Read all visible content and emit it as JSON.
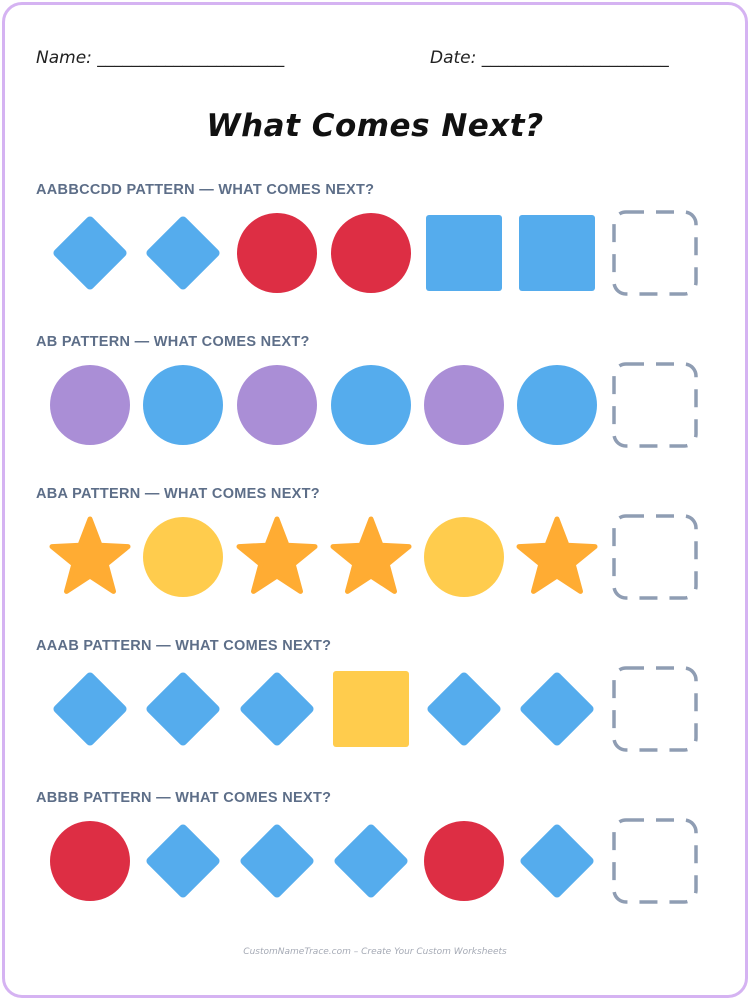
{
  "header": {
    "name_label": "Name: ______________________",
    "date_label": "Date: ______________________"
  },
  "title": "What Comes Next?",
  "colors": {
    "blue": "#55aced",
    "red": "#dd2e44",
    "purple": "#aa8ed6",
    "yellow": "#ffcc4d",
    "orange": "#ffac33",
    "answer_box": "#8f9db3",
    "frame": "#d5b3f2",
    "label": "#5d6e88"
  },
  "patterns": [
    {
      "label": "AABBCCDD PATTERN — WHAT COMES NEXT?",
      "shapes": [
        {
          "shape": "diamond",
          "color": "blue"
        },
        {
          "shape": "diamond",
          "color": "blue"
        },
        {
          "shape": "circle",
          "color": "red"
        },
        {
          "shape": "circle",
          "color": "red"
        },
        {
          "shape": "square",
          "color": "blue"
        },
        {
          "shape": "square",
          "color": "blue"
        },
        {
          "shape": "answer-box",
          "color": "answer_box"
        }
      ]
    },
    {
      "label": "AB PATTERN — WHAT COMES NEXT?",
      "shapes": [
        {
          "shape": "circle",
          "color": "purple"
        },
        {
          "shape": "circle",
          "color": "blue"
        },
        {
          "shape": "circle",
          "color": "purple"
        },
        {
          "shape": "circle",
          "color": "blue"
        },
        {
          "shape": "circle",
          "color": "purple"
        },
        {
          "shape": "circle",
          "color": "blue"
        },
        {
          "shape": "answer-box",
          "color": "answer_box"
        }
      ]
    },
    {
      "label": "ABA PATTERN — WHAT COMES NEXT?",
      "shapes": [
        {
          "shape": "star",
          "color": "orange"
        },
        {
          "shape": "circle",
          "color": "yellow"
        },
        {
          "shape": "star",
          "color": "orange"
        },
        {
          "shape": "star",
          "color": "orange"
        },
        {
          "shape": "circle",
          "color": "yellow"
        },
        {
          "shape": "star",
          "color": "orange"
        },
        {
          "shape": "answer-box",
          "color": "answer_box"
        }
      ]
    },
    {
      "label": "AAAB PATTERN — WHAT COMES NEXT?",
      "shapes": [
        {
          "shape": "diamond",
          "color": "blue"
        },
        {
          "shape": "diamond",
          "color": "blue"
        },
        {
          "shape": "diamond",
          "color": "blue"
        },
        {
          "shape": "square",
          "color": "yellow"
        },
        {
          "shape": "diamond",
          "color": "blue"
        },
        {
          "shape": "diamond",
          "color": "blue"
        },
        {
          "shape": "answer-box",
          "color": "answer_box"
        }
      ]
    },
    {
      "label": "ABBB PATTERN — WHAT COMES NEXT?",
      "shapes": [
        {
          "shape": "circle",
          "color": "red"
        },
        {
          "shape": "diamond",
          "color": "blue"
        },
        {
          "shape": "diamond",
          "color": "blue"
        },
        {
          "shape": "diamond",
          "color": "blue"
        },
        {
          "shape": "circle",
          "color": "red"
        },
        {
          "shape": "diamond",
          "color": "blue"
        },
        {
          "shape": "answer-box",
          "color": "answer_box"
        }
      ]
    }
  ],
  "footer": "CustomNameTrace.com – Create Your Custom Worksheets"
}
